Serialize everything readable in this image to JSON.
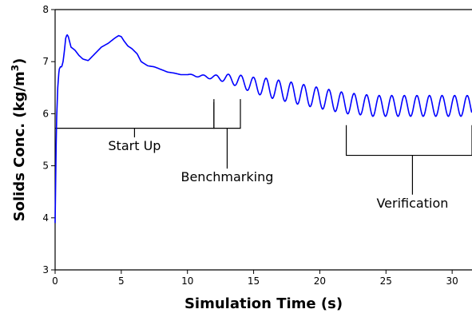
{
  "chart_data": {
    "type": "line",
    "xlabel": "Simulation Time (s)",
    "ylabel_prefix": "Solids Conc. (kg/m",
    "ylabel_sup": "3",
    "ylabel_suffix": ")",
    "xlim": [
      0,
      31.5
    ],
    "ylim": [
      3,
      8
    ],
    "x_ticks": [
      0,
      5,
      10,
      15,
      20,
      25,
      30
    ],
    "y_ticks": [
      3,
      4,
      5,
      6,
      7,
      8
    ],
    "grid": false,
    "series": [
      {
        "color": "#0000ff",
        "x": [
          0,
          0.1,
          0.2,
          0.3,
          0.4,
          0.5,
          0.6,
          0.7,
          0.8,
          0.9,
          1.0,
          1.2,
          1.5,
          1.8,
          2.1,
          2.5,
          3.0,
          3.5,
          4.0,
          4.5,
          4.8,
          5.0,
          5.2,
          5.5,
          5.8,
          6.2,
          6.5,
          7.0,
          7.5,
          8.0,
          8.5,
          9.0,
          9.5,
          10.0,
          11.0,
          12.0,
          13.0,
          14.0,
          15.0,
          16.0,
          17.0,
          18.0,
          19.0,
          20.0,
          21.0,
          22.0,
          23.0,
          24.0,
          25.0,
          26.0,
          27.0,
          28.0,
          29.0,
          30.0,
          31.5
        ],
        "y": [
          3.9,
          5.8,
          6.5,
          6.85,
          6.9,
          6.9,
          7.0,
          7.2,
          7.45,
          7.52,
          7.48,
          7.28,
          7.22,
          7.12,
          7.05,
          7.02,
          7.15,
          7.28,
          7.35,
          7.45,
          7.5,
          7.48,
          7.4,
          7.3,
          7.25,
          7.15,
          7.0,
          6.92,
          6.9,
          6.85,
          6.8,
          6.78,
          6.75,
          6.75,
          6.72,
          6.7,
          6.68,
          6.62,
          6.55,
          6.5,
          6.45,
          6.4,
          6.35,
          6.3,
          6.25,
          6.2,
          6.18,
          6.15,
          6.15,
          6.15,
          6.15,
          6.15,
          6.15,
          6.15,
          6.15
        ],
        "oscillation": {
          "start_x": 10,
          "period": 0.95,
          "amplitude_at": {
            "x": [
              10,
              12,
              14,
              16,
              18,
              20,
              22,
              24,
              31.5
            ],
            "a": [
              0.01,
              0.04,
              0.12,
              0.18,
              0.2,
              0.2,
              0.2,
              0.2,
              0.2
            ]
          }
        }
      }
    ],
    "annotations": [
      {
        "label": "Start Up",
        "x_range": [
          0,
          12
        ],
        "bracket_y": 5.72,
        "tick_top_y": 6.22,
        "label_x": 6,
        "label_y": 5.3
      },
      {
        "label": "Benchmarking",
        "x_range": [
          12,
          14
        ],
        "bracket_y": 5.72,
        "tick_top_y": 6.28,
        "label_x": 13,
        "label_y": 4.7
      },
      {
        "label": "Verification",
        "x_range": [
          22,
          31.5
        ],
        "bracket_y": 5.2,
        "tick_top_y": 5.78,
        "label_x": 27,
        "label_y": 4.2
      }
    ]
  }
}
